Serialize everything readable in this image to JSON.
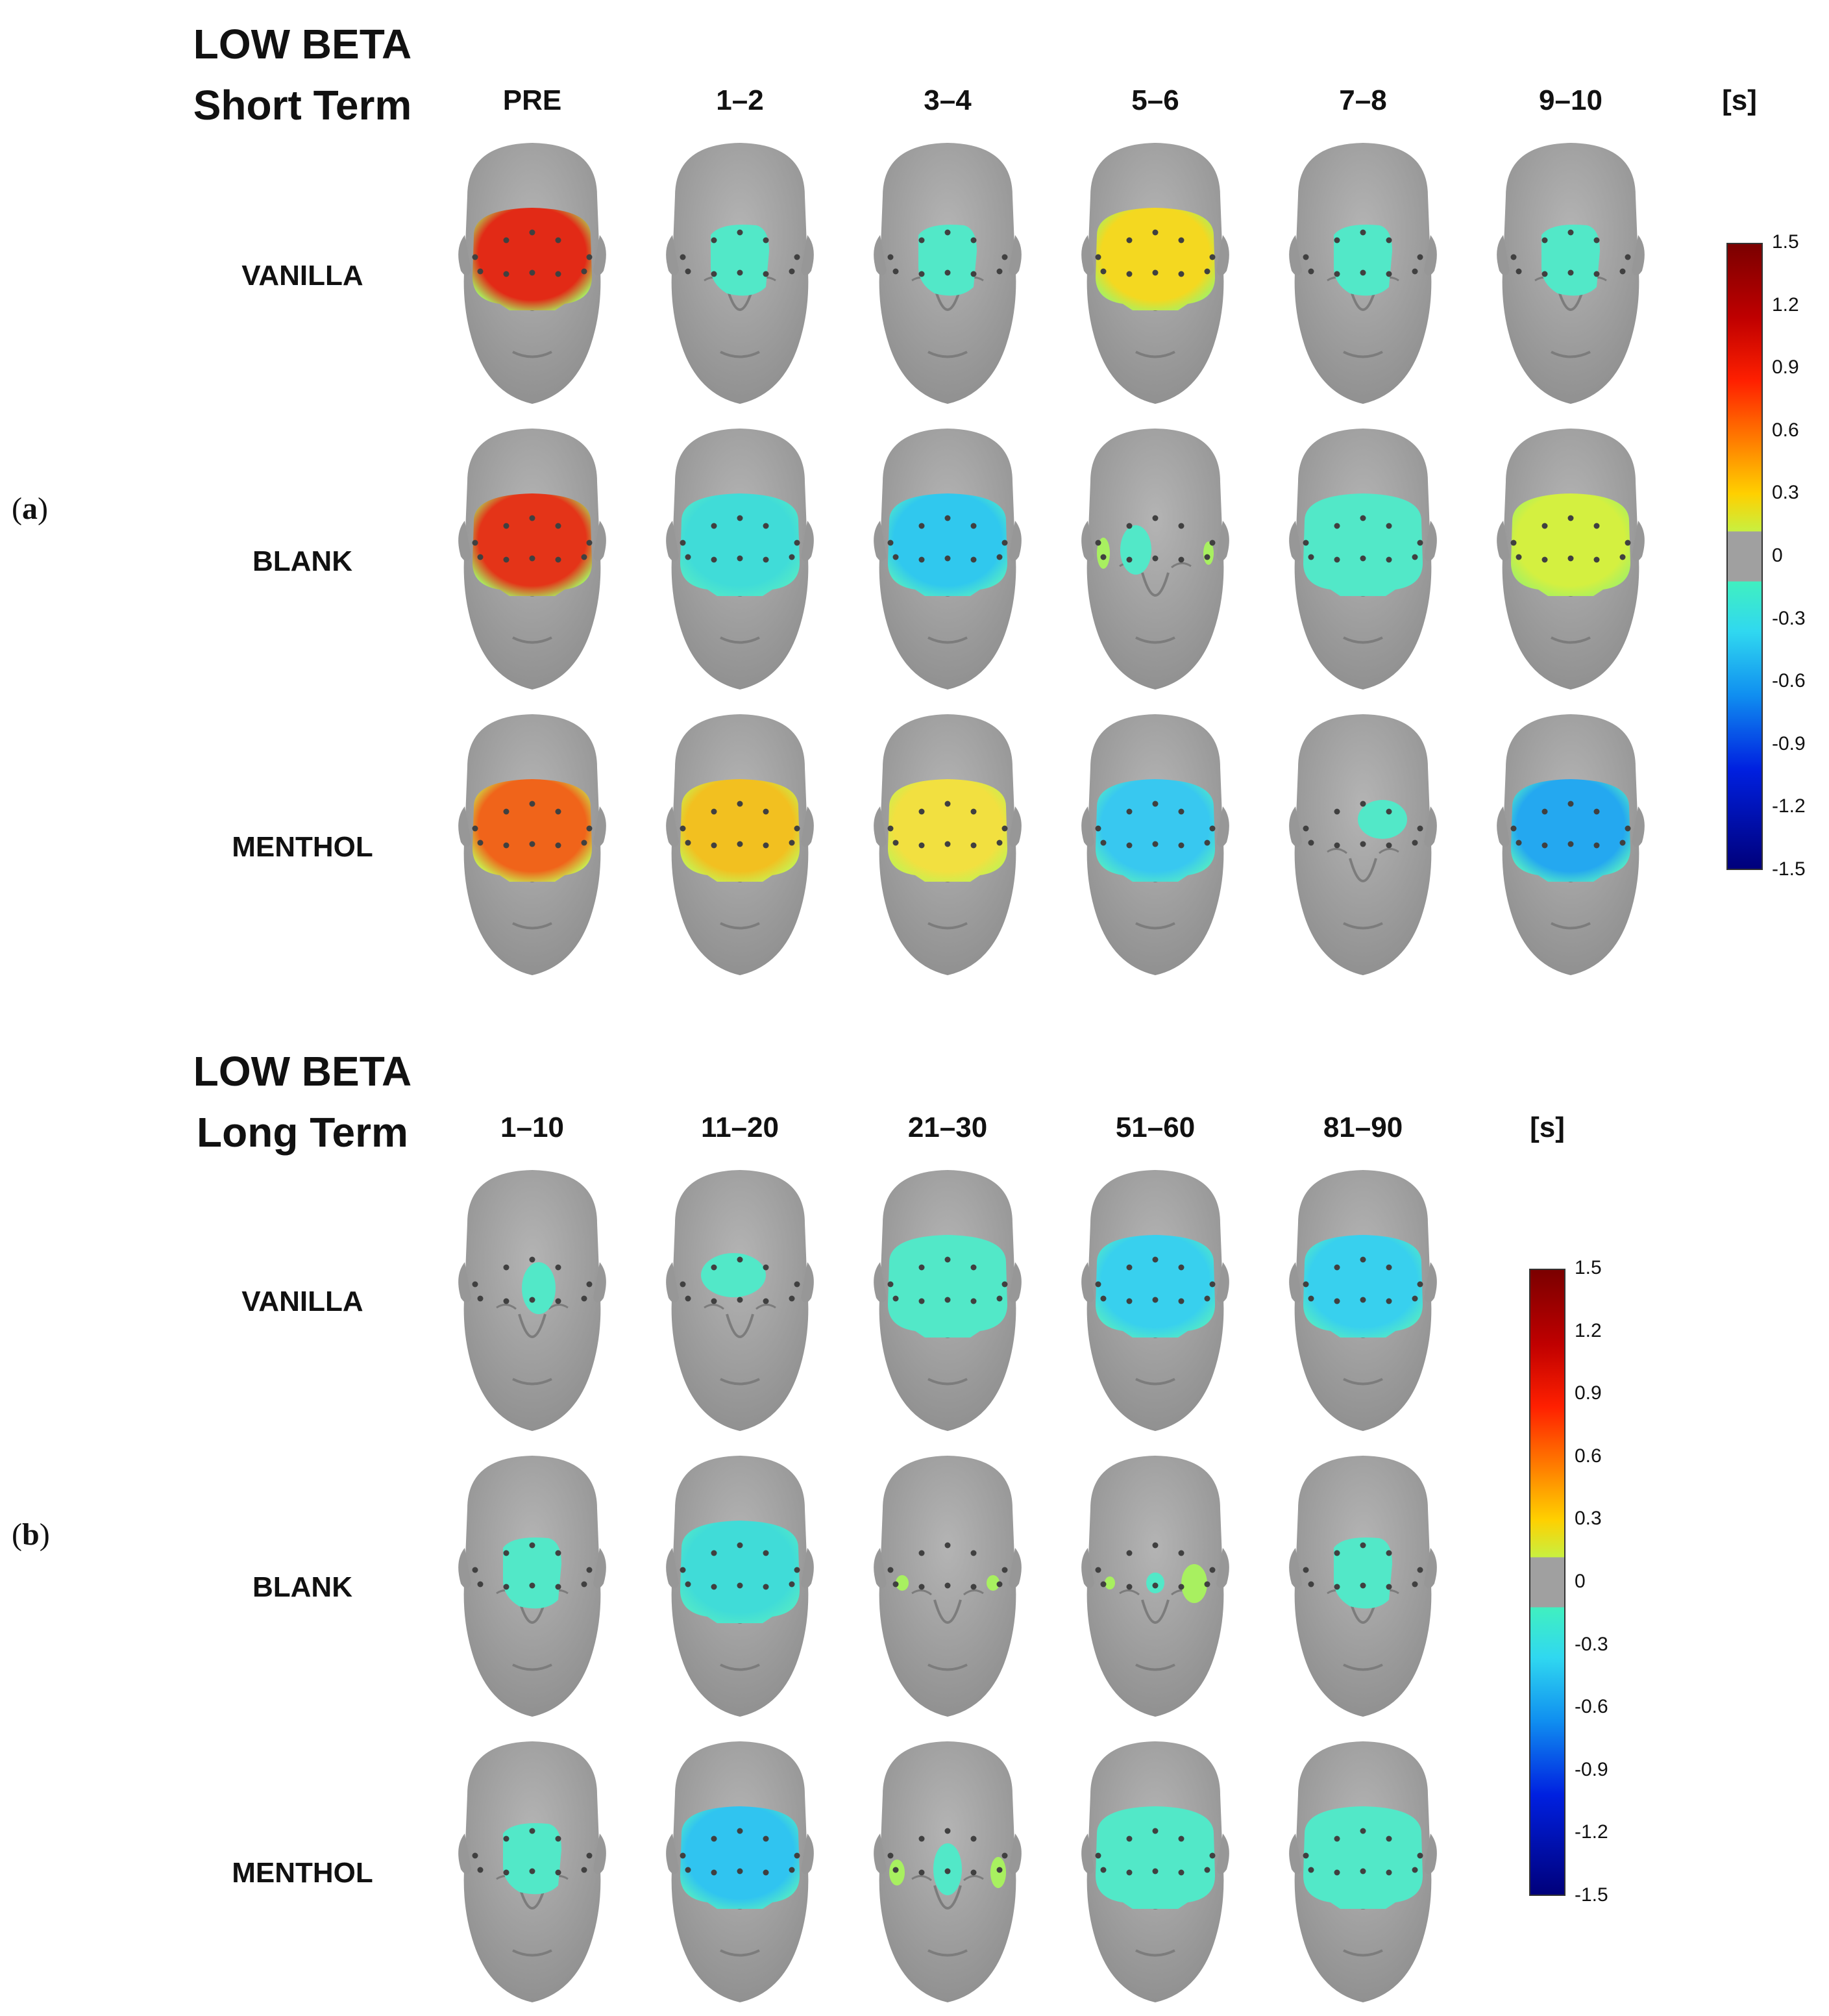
{
  "panels": [
    {
      "label_open": "(",
      "label_letter": "a",
      "label_close": ")",
      "title_line1": "LOW BETA",
      "title_line2": "Short Term",
      "unit": "[s]",
      "columns": [
        "PRE",
        "1–2",
        "3–4",
        "5–6",
        "7–8",
        "9–10"
      ],
      "rows": [
        "VANILLA",
        "BLANK",
        "MENTHOL"
      ]
    },
    {
      "label_open": "(",
      "label_letter": "b",
      "label_close": ")",
      "title_line1": "LOW BETA",
      "title_line2": "Long Term",
      "unit": "[s]",
      "columns": [
        "1–10",
        "11–20",
        "21–30",
        "51–60",
        "81–90"
      ],
      "rows": [
        "VANILLA",
        "BLANK",
        "MENTHOL"
      ]
    }
  ],
  "colorbar": {
    "ticks": [
      "1.5",
      "1.2",
      "0.9",
      "0.6",
      "0.3",
      "0",
      "-0.3",
      "-0.6",
      "-0.9",
      "-1.2",
      "-1.5"
    ],
    "range": [
      -1.5,
      1.5
    ],
    "colors": {
      "max": "#7a0000",
      "high": "#e02010",
      "mid_high": "#ff8c00",
      "low_pos": "#f0e020",
      "zero": "#a0a0a0",
      "low_neg": "#40e0c8",
      "mid_neg": "#30c0f0",
      "neg": "#1040e0",
      "min": "#00007a"
    }
  },
  "head_color": "#a3a3a3"
}
